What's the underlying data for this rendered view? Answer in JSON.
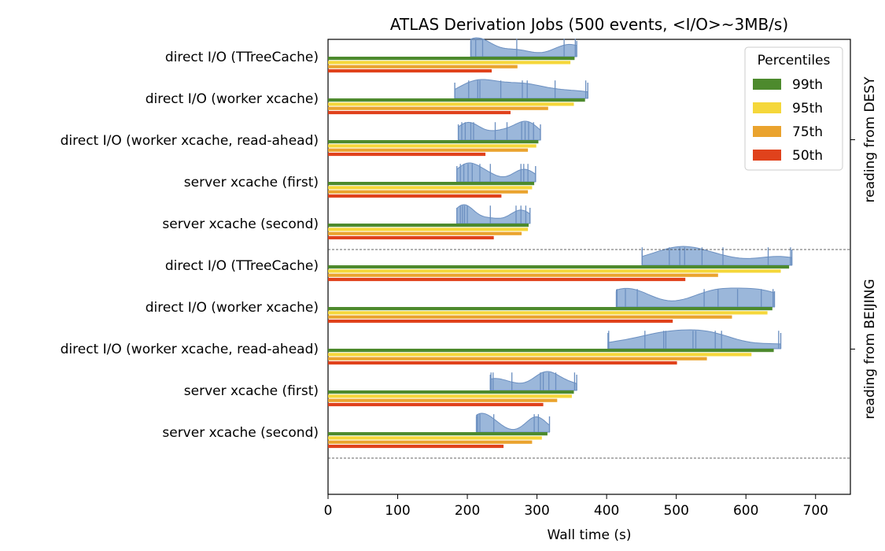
{
  "chart_data": {
    "type": "bar",
    "orientation": "horizontal",
    "title": "ATLAS Derivation Jobs (500 events, <I/O>~3MB/s)",
    "xlabel": "Wall time (s)",
    "xlim": [
      0,
      750
    ],
    "xticks": [
      0,
      100,
      200,
      300,
      400,
      500,
      600,
      700
    ],
    "legend": {
      "title": "Percentiles",
      "position": "top-right",
      "entries": [
        "99th",
        "95th",
        "75th",
        "50th"
      ]
    },
    "colors": {
      "p99": "#4d8a2d",
      "p95": "#f5d73a",
      "p75": "#eaa32e",
      "p50": "#e0421c",
      "violin": "#7a9fcd",
      "violin_edge": "#6b8fc0"
    },
    "groups": [
      {
        "label": "reading from DESY",
        "categories": [
          {
            "name": "direct I/O (TTreeCache)",
            "p99": 354,
            "p95": 348,
            "p75": 272,
            "p50": 235,
            "dist": {
              "min": 205,
              "max": 357,
              "samples": [
                205,
                212,
                222,
                271,
                339,
                355
              ]
            }
          },
          {
            "name": "direct I/O (worker xcache)",
            "p99": 369,
            "p95": 353,
            "p75": 316,
            "p50": 262,
            "dist": {
              "min": 182,
              "max": 373,
              "samples": [
                202,
                215,
                218,
                248,
                279,
                286,
                326,
                370
              ]
            }
          },
          {
            "name": "direct I/O (worker xcache, read-ahead)",
            "p99": 302,
            "p95": 299,
            "p75": 287,
            "p50": 226,
            "dist": {
              "min": 187,
              "max": 305,
              "samples": [
                192,
                197,
                205,
                209,
                240,
                257,
                278,
                283,
                288,
                295
              ]
            }
          },
          {
            "name": "server xcache (first)",
            "p99": 296,
            "p95": 293,
            "p75": 287,
            "p50": 249,
            "dist": {
              "min": 185,
              "max": 298,
              "samples": [
                190,
                195,
                201,
                207,
                218,
                233,
                277,
                281,
                287
              ]
            }
          },
          {
            "name": "server xcache (second)",
            "p99": 288,
            "p95": 287,
            "p75": 278,
            "p50": 238,
            "dist": {
              "min": 185,
              "max": 290,
              "samples": [
                190,
                193,
                196,
                200,
                233,
                270,
                277,
                284
              ]
            }
          }
        ]
      },
      {
        "label": "reading from BEIJING",
        "categories": [
          {
            "name": "direct I/O (TTreeCache)",
            "p99": 662,
            "p95": 650,
            "p75": 560,
            "p50": 513,
            "dist": {
              "min": 451,
              "max": 666,
              "samples": [
                451,
                490,
                505,
                512,
                537,
                567,
                632,
                664
              ]
            }
          },
          {
            "name": "direct I/O (worker xcache)",
            "p99": 638,
            "p95": 631,
            "p75": 580,
            "p50": 495,
            "dist": {
              "min": 414,
              "max": 641,
              "samples": [
                415,
                427,
                444,
                540,
                560,
                588,
                622,
                639
              ]
            }
          },
          {
            "name": "direct I/O (worker xcache, read-ahead)",
            "p99": 640,
            "p95": 608,
            "p75": 544,
            "p50": 501,
            "dist": {
              "min": 402,
              "max": 650,
              "samples": [
                403,
                455,
                482,
                485,
                524,
                528,
                556,
                565,
                647
              ]
            }
          },
          {
            "name": "server xcache (first)",
            "p99": 353,
            "p95": 350,
            "p75": 329,
            "p50": 309,
            "dist": {
              "min": 233,
              "max": 357,
              "samples": [
                234,
                237,
                264,
                305,
                309,
                317,
                327,
                354
              ]
            }
          },
          {
            "name": "server xcache (second)",
            "p99": 315,
            "p95": 307,
            "p75": 293,
            "p50": 252,
            "dist": {
              "min": 213,
              "max": 318,
              "samples": [
                215,
                218,
                238,
                296,
                302
              ]
            }
          }
        ]
      }
    ]
  }
}
